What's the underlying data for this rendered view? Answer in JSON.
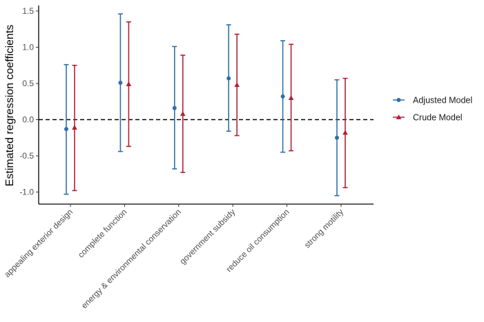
{
  "chart_data": {
    "type": "scatter",
    "title": "",
    "xlabel": "",
    "ylabel": "Estimated regression coefficients",
    "ylim": [
      -1.18,
      1.58
    ],
    "yticks": [
      -1.0,
      -0.5,
      0.0,
      0.5,
      1.0,
      1.5
    ],
    "ytick_labels": [
      "-1.0",
      "-0.5",
      "0.0",
      "0.5",
      "1.0",
      "1.5"
    ],
    "categories": [
      "appealing exterior design",
      "complete function",
      "energy & environmental conservation",
      "government subsidy",
      "reduce oil consumption",
      "strong motility"
    ],
    "reference_line": {
      "y": 0,
      "style": "dashed"
    },
    "grid": false,
    "legend_position": "right",
    "series": [
      {
        "name": "Adjusted Model",
        "color": "#2f6fa8",
        "marker": "circle",
        "estimate": [
          -0.13,
          0.51,
          0.16,
          0.57,
          0.32,
          -0.25
        ],
        "lower": [
          -1.03,
          -0.44,
          -0.68,
          -0.16,
          -0.45,
          -1.05
        ],
        "upper": [
          0.76,
          1.46,
          1.01,
          1.31,
          1.09,
          0.55
        ]
      },
      {
        "name": "Crude Model",
        "color": "#b22035",
        "marker": "triangle",
        "estimate": [
          -0.11,
          0.49,
          0.08,
          0.48,
          0.3,
          -0.18
        ],
        "lower": [
          -0.98,
          -0.37,
          -0.73,
          -0.22,
          -0.43,
          -0.94
        ],
        "upper": [
          0.75,
          1.35,
          0.89,
          1.18,
          1.04,
          0.57
        ]
      }
    ]
  }
}
